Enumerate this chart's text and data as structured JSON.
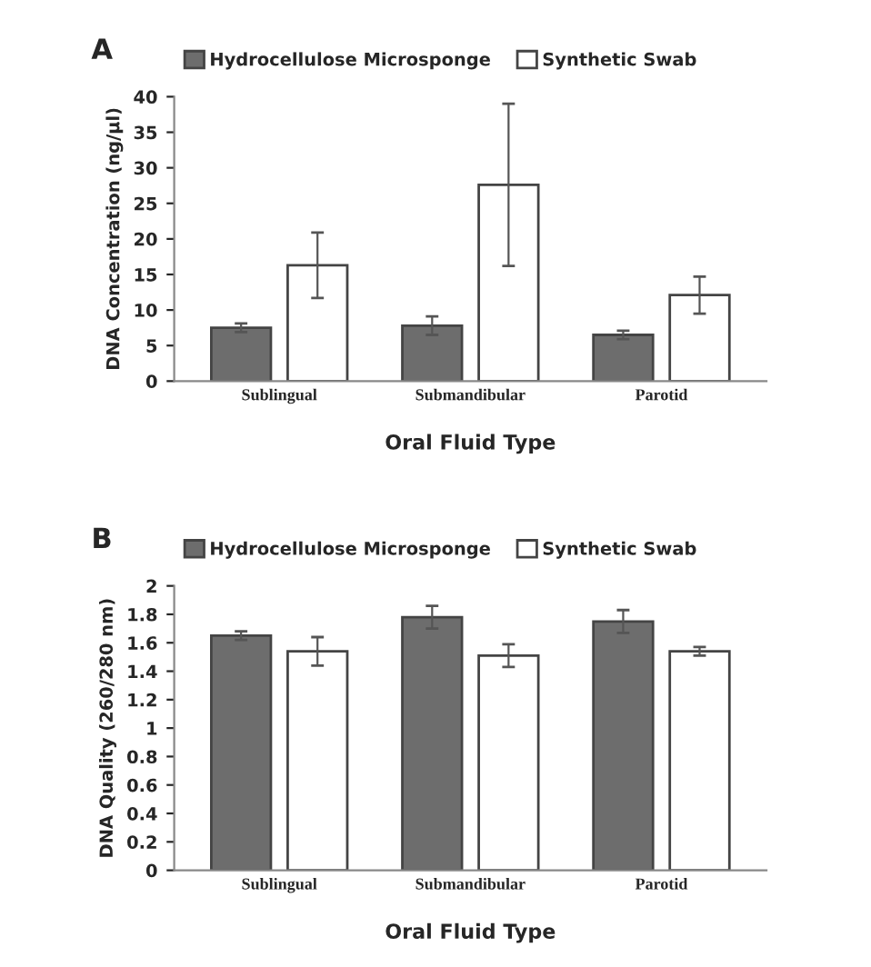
{
  "chart_data": [
    {
      "type": "bar",
      "title": "A",
      "xlabel": "Oral Fluid Type",
      "ylabel": "DNA Concentration (ng/µl)",
      "categories": [
        "Sublingual",
        "Submandibular",
        "Parotid"
      ],
      "series": [
        {
          "name": "Hydrocellulose Microsponge",
          "color": "#6d6d6d",
          "values": [
            7.5,
            7.8,
            6.5
          ],
          "errors": [
            0.6,
            1.3,
            0.6
          ]
        },
        {
          "name": "Synthetic Swab",
          "color": "#ffffff",
          "values": [
            16.3,
            27.6,
            12.1
          ],
          "errors": [
            4.6,
            11.4,
            2.6
          ]
        }
      ],
      "ylim": [
        0,
        40
      ],
      "yticks": [
        0,
        5,
        10,
        15,
        20,
        25,
        30,
        35,
        40
      ],
      "grid": false,
      "legend": "top"
    },
    {
      "type": "bar",
      "title": "B",
      "xlabel": "Oral Fluid Type",
      "ylabel": "DNA Quality (260/280 nm)",
      "categories": [
        "Sublingual",
        "Submandibular",
        "Parotid"
      ],
      "series": [
        {
          "name": "Hydrocellulose Microsponge",
          "color": "#6d6d6d",
          "values": [
            1.65,
            1.78,
            1.75
          ],
          "errors": [
            0.03,
            0.08,
            0.08
          ]
        },
        {
          "name": "Synthetic Swab",
          "color": "#ffffff",
          "values": [
            1.54,
            1.51,
            1.54
          ],
          "errors": [
            0.1,
            0.08,
            0.03
          ]
        }
      ],
      "ylim": [
        0,
        2
      ],
      "yticks": [
        0,
        0.2,
        0.4,
        0.6,
        0.8,
        1,
        1.2,
        1.4,
        1.6,
        1.8,
        2
      ],
      "grid": false,
      "legend": "top"
    }
  ]
}
